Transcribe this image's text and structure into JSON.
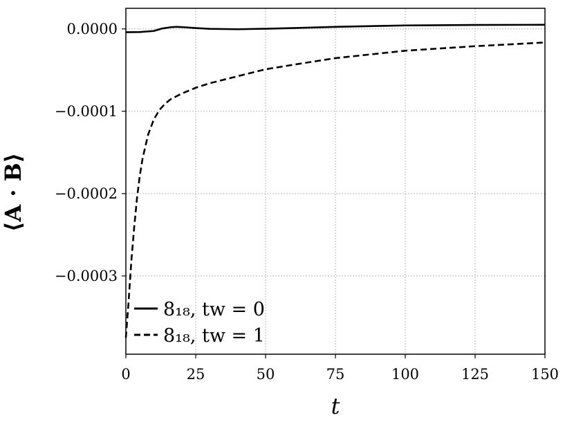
{
  "chart_data": {
    "type": "line",
    "xlabel": "t",
    "ylabel": "⟨A · B⟩",
    "xlim": [
      0,
      150
    ],
    "ylim": [
      -0.000395,
      2.5e-05
    ],
    "xticks": [
      0,
      25,
      50,
      75,
      100,
      125,
      150
    ],
    "xtick_labels": [
      "0",
      "25",
      "50",
      "75",
      "100",
      "125",
      "150"
    ],
    "yticks": [
      0,
      -0.0001,
      -0.0002,
      -0.0003
    ],
    "ytick_labels": [
      "0.0000",
      "−0.0001",
      "−0.0002",
      "−0.0003"
    ],
    "grid": true,
    "legend_position": "lower-left",
    "series": [
      {
        "name": "8₁₈, tw = 0",
        "style": "solid",
        "color": "#000000",
        "x": [
          0,
          5,
          10,
          13,
          16,
          18,
          20,
          25,
          30,
          40,
          50,
          60,
          75,
          90,
          100,
          125,
          150
        ],
        "y": [
          -4e-06,
          -3.8e-06,
          -2.5e-06,
          5e-07,
          2e-06,
          2.5e-06,
          2.2e-06,
          1e-06,
          1e-07,
          -4e-07,
          2e-07,
          1e-06,
          2.5e-06,
          3.5e-06,
          4.2e-06,
          4.8e-06,
          5e-06
        ]
      },
      {
        "name": "8₁₈, tw = 1",
        "style": "dashed",
        "color": "#000000",
        "x": [
          0,
          1,
          2,
          3,
          4,
          5,
          6,
          8,
          10,
          12,
          14,
          16,
          18,
          20,
          25,
          30,
          40,
          50,
          60,
          75,
          100,
          125,
          150
        ],
        "y": [
          -0.000375,
          -0.00033,
          -0.00028,
          -0.00024,
          -0.000205,
          -0.000178,
          -0.000157,
          -0.000128,
          -0.00011,
          -9.85e-05,
          -9.1e-05,
          -8.55e-05,
          -8.2e-05,
          -7.85e-05,
          -7.15e-05,
          -6.6e-05,
          -5.75e-05,
          -4.9e-05,
          -4.35e-05,
          -3.55e-05,
          -2.65e-05,
          -2.1e-05,
          -1.65e-05
        ]
      }
    ]
  }
}
